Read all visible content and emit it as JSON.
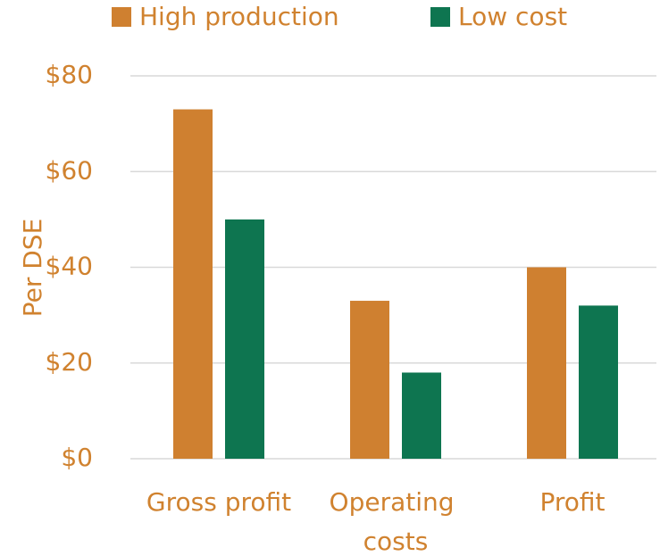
{
  "chart_data": {
    "type": "bar",
    "ylabel": "Per DSE",
    "categories": [
      "Gross profit",
      "Operating costs",
      "Profit"
    ],
    "series": [
      {
        "name": "High production",
        "color": "#cf8030",
        "values": [
          73,
          33,
          40
        ]
      },
      {
        "name": "Low cost",
        "color": "#0e7550",
        "values": [
          50,
          18,
          32
        ]
      }
    ],
    "ylim": [
      0,
      80
    ],
    "yticks": [
      {
        "value": 0,
        "label": "$0"
      },
      {
        "value": 20,
        "label": "$20"
      },
      {
        "value": 40,
        "label": "$40"
      },
      {
        "value": 60,
        "label": "$60"
      },
      {
        "value": 80,
        "label": "$80"
      }
    ],
    "grid": true,
    "legend": "top"
  }
}
